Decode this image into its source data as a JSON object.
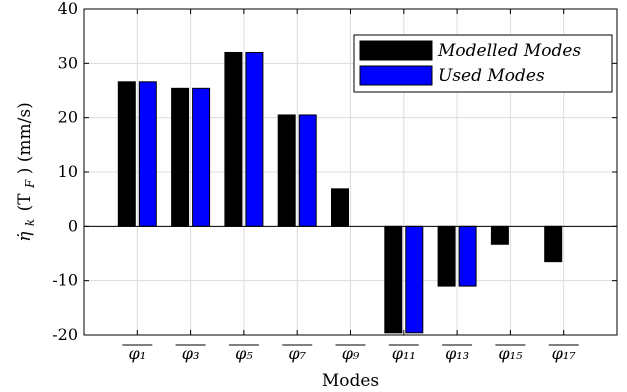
{
  "chart_data": {
    "type": "bar",
    "categories": [
      "φ₁",
      "φ₃",
      "φ₅",
      "φ₇",
      "φ₉",
      "φ₁₁",
      "φ₁₃",
      "φ₁₅",
      "φ₁₇"
    ],
    "categories_overline": true,
    "series": [
      {
        "name": "Modelled Modes",
        "color": "#000000",
        "values": [
          26.6,
          25.4,
          32.0,
          20.5,
          6.9,
          -19.6,
          -11.0,
          -3.3,
          -6.5
        ]
      },
      {
        "name": "Used Modes",
        "color": "#0000ff",
        "values": [
          26.6,
          25.4,
          32.0,
          20.5,
          0,
          -19.6,
          -11.0,
          0,
          0
        ]
      }
    ],
    "xlabel": "Modes",
    "ylabel_main": "η̇",
    "ylabel_sub": "k",
    "ylabel_rest": "(T",
    "ylabel_sub2": "F",
    "ylabel_tail": ") (mm/s)",
    "ylim": [
      -20,
      40
    ],
    "yticks": [
      -20,
      -10,
      0,
      10,
      20,
      30,
      40
    ],
    "ytick_labels": [
      "-20",
      "-10",
      "0",
      "10",
      "20",
      "30",
      "40"
    ],
    "grid": true,
    "legend_position": "top-right"
  }
}
